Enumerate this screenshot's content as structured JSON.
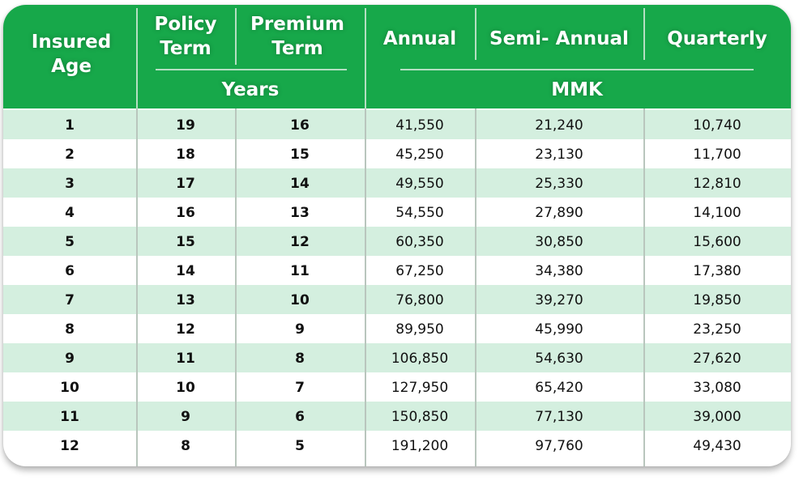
{
  "header": {
    "insured_age": "Insured Age",
    "policy_term": "Policy Term",
    "premium_term": "Premium Term",
    "years": "Years",
    "annual": "Annual",
    "semi_annual": "Semi- Annual",
    "quarterly": "Quarterly",
    "currency": "MMK"
  },
  "colors": {
    "header_green": "#17a84a",
    "row_shade": "#d4efdf"
  },
  "rows": [
    [
      "1",
      "19",
      "16",
      "41,550",
      "21,240",
      "10,740"
    ],
    [
      "2",
      "18",
      "15",
      "45,250",
      "23,130",
      "11,700"
    ],
    [
      "3",
      "17",
      "14",
      "49,550",
      "25,330",
      "12,810"
    ],
    [
      "4",
      "16",
      "13",
      "54,550",
      "27,890",
      "14,100"
    ],
    [
      "5",
      "15",
      "12",
      "60,350",
      "30,850",
      "15,600"
    ],
    [
      "6",
      "14",
      "11",
      "67,250",
      "34,380",
      "17,380"
    ],
    [
      "7",
      "13",
      "10",
      "76,800",
      "39,270",
      "19,850"
    ],
    [
      "8",
      "12",
      "9",
      "89,950",
      "45,990",
      "23,250"
    ],
    [
      "9",
      "11",
      "8",
      "106,850",
      "54,630",
      "27,620"
    ],
    [
      "10",
      "10",
      "7",
      "127,950",
      "65,420",
      "33,080"
    ],
    [
      "11",
      "9",
      "6",
      "150,850",
      "77,130",
      "39,000"
    ],
    [
      "12",
      "8",
      "5",
      "191,200",
      "97,760",
      "49,430"
    ]
  ]
}
